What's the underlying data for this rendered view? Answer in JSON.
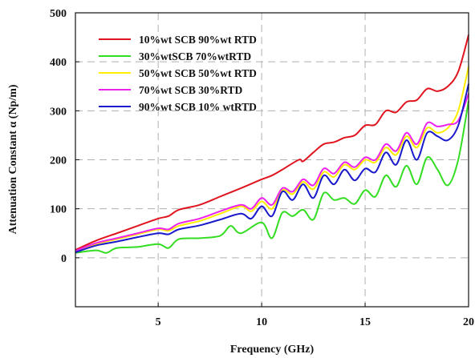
{
  "chart_data": {
    "type": "line",
    "xlabel": "Frequency (GHz)",
    "ylabel": "Attenuation Constant α (Np/m)",
    "xlim": [
      1,
      20
    ],
    "ylim": [
      -100,
      500
    ],
    "xticks": [
      5,
      10,
      15,
      20
    ],
    "yticks": [
      0,
      100,
      200,
      300,
      400,
      500
    ],
    "grid": "dashed",
    "legend_position": "top-left",
    "series": [
      {
        "name": "10%wt SCB 90%wt RTD",
        "color": "#e0141e",
        "x": [
          1,
          2,
          3,
          4,
          5,
          5.5,
          6,
          7,
          8,
          9,
          10,
          10.5,
          11,
          11.8,
          12,
          12.5,
          13,
          13.5,
          14,
          14.5,
          15,
          15.5,
          16,
          16.5,
          17,
          17.5,
          18,
          18.5,
          19,
          19.5,
          20
        ],
        "y": [
          16,
          35,
          50,
          65,
          80,
          85,
          98,
          108,
          125,
          142,
          160,
          168,
          180,
          200,
          197,
          215,
          232,
          236,
          245,
          250,
          270,
          272,
          300,
          297,
          318,
          322,
          345,
          340,
          350,
          380,
          455
        ]
      },
      {
        "name": "30%wtSCB 70%wtRTD",
        "color": "#33dd22",
        "x": [
          1,
          2,
          2.5,
          3,
          4,
          5,
          5.5,
          6,
          7,
          8,
          8.5,
          9,
          10,
          10.5,
          11,
          11.5,
          12,
          12.5,
          13,
          13.5,
          14,
          14.5,
          15,
          15.5,
          16,
          16.5,
          17,
          17.5,
          18,
          18.5,
          19,
          19.5,
          20
        ],
        "y": [
          10,
          15,
          10,
          20,
          22,
          28,
          20,
          38,
          40,
          45,
          65,
          50,
          72,
          40,
          92,
          85,
          98,
          78,
          132,
          118,
          122,
          110,
          138,
          125,
          168,
          145,
          188,
          150,
          205,
          180,
          148,
          200,
          320
        ]
      },
      {
        "name": "50%wt SCB 50%wt RTD",
        "color": "#ffee00",
        "x": [
          1,
          2,
          3,
          4,
          5,
          5.5,
          6,
          7,
          8,
          9,
          9.5,
          10,
          10.5,
          11,
          11.5,
          12,
          12.5,
          13,
          13.5,
          14,
          14.5,
          15,
          15.5,
          16,
          16.5,
          17,
          17.5,
          18,
          18.5,
          19,
          19.5,
          20
        ],
        "y": [
          13,
          28,
          38,
          48,
          58,
          55,
          65,
          75,
          90,
          105,
          95,
          115,
          100,
          138,
          130,
          155,
          140,
          175,
          165,
          190,
          180,
          200,
          195,
          225,
          210,
          248,
          225,
          265,
          255,
          265,
          300,
          390
        ]
      },
      {
        "name": "70%wt SCB 30%RTD",
        "color": "#ee22ee",
        "x": [
          1,
          2,
          3,
          4,
          5,
          5.5,
          6,
          7,
          8,
          9,
          9.5,
          10,
          10.5,
          11,
          11.5,
          12,
          12.5,
          13,
          13.5,
          14,
          14.5,
          15,
          15.5,
          16,
          16.5,
          17,
          17.5,
          18,
          18.5,
          19,
          19.5,
          20
        ],
        "y": [
          14,
          30,
          40,
          50,
          60,
          58,
          70,
          80,
          95,
          108,
          100,
          122,
          108,
          142,
          135,
          160,
          148,
          182,
          172,
          195,
          185,
          205,
          200,
          232,
          218,
          255,
          232,
          275,
          268,
          272,
          280,
          335
        ]
      },
      {
        "name": "90%wt SCB 10% wtRTD",
        "color": "#1a1acc",
        "x": [
          1,
          2,
          3,
          4,
          5,
          5.5,
          6,
          7,
          8,
          9,
          9.5,
          10,
          10.5,
          11,
          11.5,
          12,
          12.5,
          13,
          13.5,
          14,
          14.5,
          15,
          15.5,
          16,
          16.5,
          17,
          17.5,
          18,
          18.5,
          19,
          19.5,
          20
        ],
        "y": [
          11,
          25,
          33,
          42,
          50,
          48,
          58,
          66,
          78,
          90,
          80,
          105,
          85,
          135,
          118,
          150,
          122,
          168,
          150,
          180,
          158,
          182,
          175,
          215,
          190,
          240,
          200,
          255,
          248,
          240,
          270,
          355
        ]
      }
    ]
  }
}
